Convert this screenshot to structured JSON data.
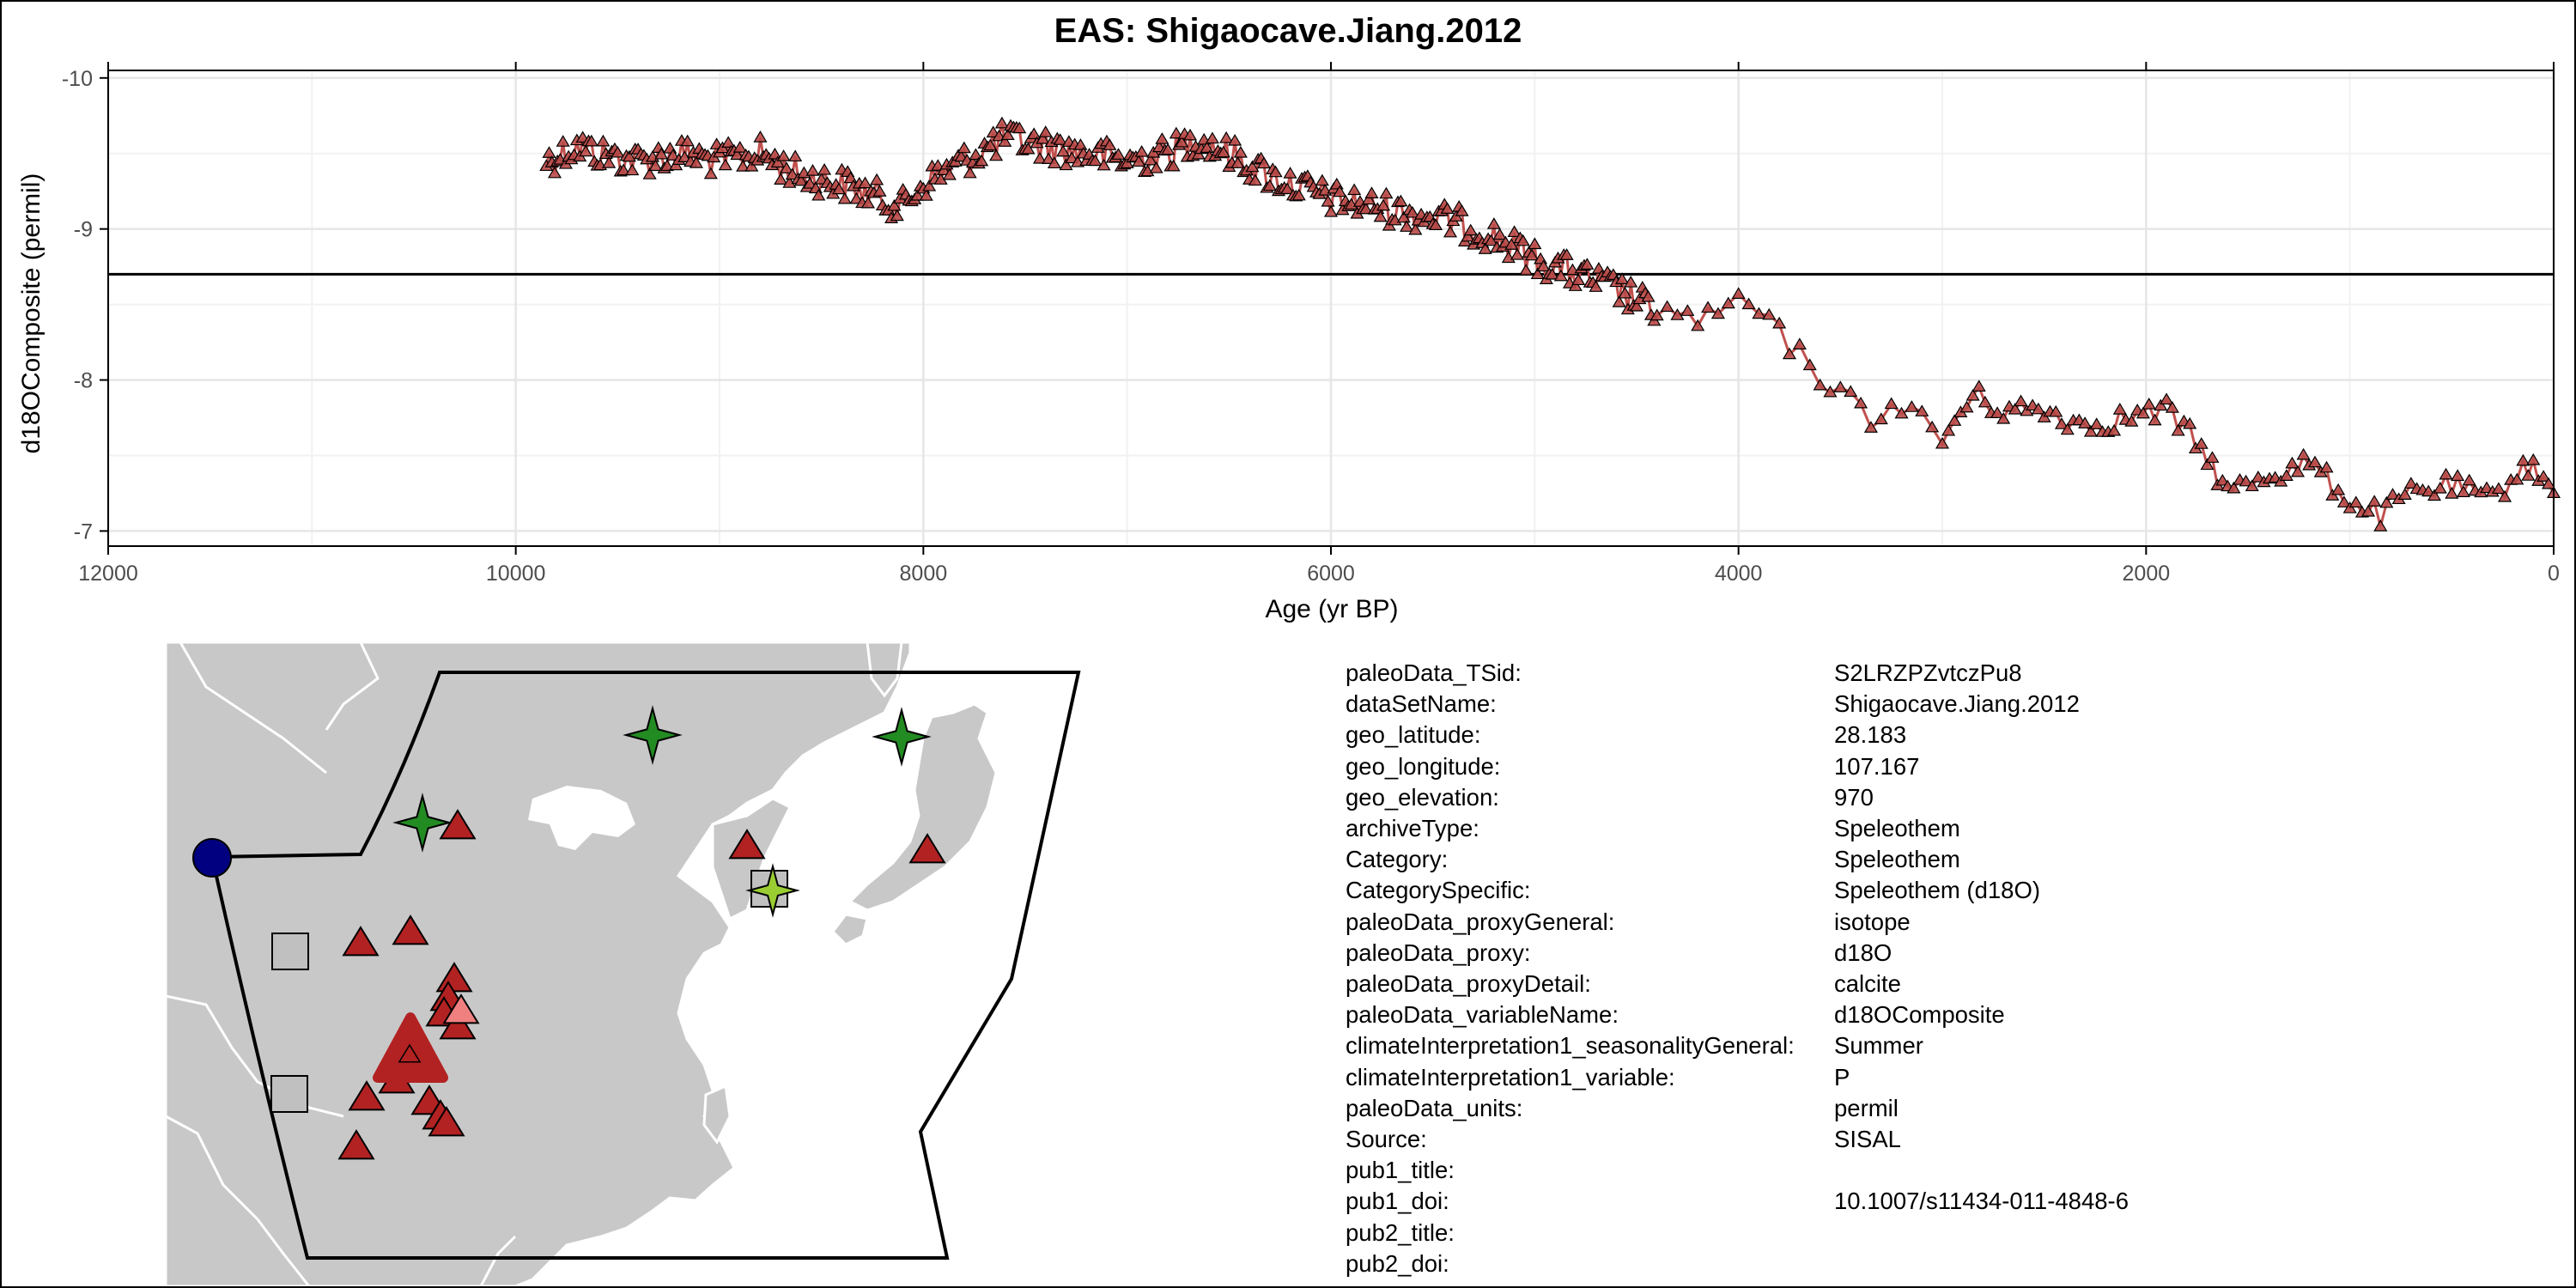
{
  "chart_data": {
    "type": "line",
    "title": "EAS: Shigaocave.Jiang.2012",
    "xlabel": "Age (yr BP)",
    "ylabel": "d18OComposite (permil)",
    "xlim": [
      12000,
      0
    ],
    "ylim": [
      -6.9,
      -10.05
    ],
    "x_reversed": true,
    "y_reversed": true,
    "x_ticks": [
      12000,
      10000,
      8000,
      6000,
      4000,
      2000,
      0
    ],
    "y_ticks": [
      -10,
      -9,
      -8,
      -7
    ],
    "x_tick_labels": [
      "12000",
      "10000",
      "8000",
      "6000",
      "4000",
      "2000",
      "0"
    ],
    "y_tick_labels": [
      "-10",
      "-9",
      "-8",
      "-7"
    ],
    "reference_line_y": -8.7,
    "grid": true,
    "marker": "triangle",
    "series_color": "#c0504d",
    "series": [
      {
        "anchors": [
          [
            9850,
            -9.45
          ],
          [
            9700,
            -9.55
          ],
          [
            9600,
            -9.5
          ],
          [
            9400,
            -9.45
          ],
          [
            9200,
            -9.5
          ],
          [
            9000,
            -9.45
          ],
          [
            8800,
            -9.5
          ],
          [
            8600,
            -9.35
          ],
          [
            8400,
            -9.3
          ],
          [
            8200,
            -9.2
          ],
          [
            8100,
            -9.15
          ],
          [
            8000,
            -9.3
          ],
          [
            7800,
            -9.45
          ],
          [
            7600,
            -9.6
          ],
          [
            7400,
            -9.55
          ],
          [
            7200,
            -9.5
          ],
          [
            7000,
            -9.45
          ],
          [
            6800,
            -9.5
          ],
          [
            6650,
            -9.6
          ],
          [
            6500,
            -9.5
          ],
          [
            6300,
            -9.35
          ],
          [
            6100,
            -9.25
          ],
          [
            6000,
            -9.2
          ],
          [
            5800,
            -9.15
          ],
          [
            5600,
            -9.1
          ],
          [
            5400,
            -9.05
          ],
          [
            5200,
            -8.95
          ],
          [
            5000,
            -8.8
          ],
          [
            4800,
            -8.7
          ],
          [
            4600,
            -8.6
          ],
          [
            4400,
            -8.45
          ],
          [
            4200,
            -8.4
          ],
          [
            4100,
            -8.4
          ],
          [
            4000,
            -8.55
          ],
          [
            3800,
            -8.3
          ],
          [
            3650,
            -8.1
          ],
          [
            3500,
            -7.9
          ],
          [
            3350,
            -7.75
          ],
          [
            3200,
            -7.85
          ],
          [
            3000,
            -7.6
          ],
          [
            2850,
            -7.9
          ],
          [
            2700,
            -7.8
          ],
          [
            2500,
            -7.8
          ],
          [
            2300,
            -7.7
          ],
          [
            2100,
            -7.75
          ],
          [
            1900,
            -7.8
          ],
          [
            1700,
            -7.5
          ],
          [
            1600,
            -7.25
          ],
          [
            1450,
            -7.35
          ],
          [
            1200,
            -7.45
          ],
          [
            1000,
            -7.2
          ],
          [
            850,
            -7.1
          ],
          [
            700,
            -7.25
          ],
          [
            500,
            -7.3
          ],
          [
            300,
            -7.2
          ],
          [
            150,
            -7.45
          ],
          [
            50,
            -7.35
          ],
          [
            0,
            -7.25
          ]
        ]
      }
    ]
  },
  "map": {
    "land_color": "#c8c8c8",
    "site_markers": [
      {
        "shape": "circle",
        "color": "#000080"
      },
      {
        "shape": "star",
        "color": "#228b22"
      },
      {
        "shape": "star",
        "color": "#9acd32"
      },
      {
        "shape": "square",
        "color": "#c0c0c0"
      },
      {
        "shape": "triangle",
        "color": "#b22222"
      },
      {
        "shape": "triangle-down",
        "color": "#f08080"
      },
      {
        "shape": "triangle",
        "color": "#ffd700"
      }
    ]
  },
  "metadata": [
    {
      "key": "paleoData_TSid:",
      "value": "S2LRZPZvtczPu8"
    },
    {
      "key": "dataSetName:",
      "value": "Shigaocave.Jiang.2012"
    },
    {
      "key": "geo_latitude:",
      "value": "28.183"
    },
    {
      "key": "geo_longitude:",
      "value": "107.167"
    },
    {
      "key": "geo_elevation:",
      "value": "970"
    },
    {
      "key": "archiveType:",
      "value": "Speleothem"
    },
    {
      "key": "Category:",
      "value": "Speleothem"
    },
    {
      "key": "CategorySpecific:",
      "value": "Speleothem (d18O)"
    },
    {
      "key": "paleoData_proxyGeneral:",
      "value": "isotope"
    },
    {
      "key": "paleoData_proxy:",
      "value": "d18O"
    },
    {
      "key": "paleoData_proxyDetail:",
      "value": "calcite"
    },
    {
      "key": "paleoData_variableName:",
      "value": "d18OComposite"
    },
    {
      "key": "climateInterpretation1_seasonalityGeneral:",
      "value": "Summer"
    },
    {
      "key": "climateInterpretation1_variable:",
      "value": "P"
    },
    {
      "key": "paleoData_units:",
      "value": "permil"
    },
    {
      "key": "Source:",
      "value": "SISAL"
    },
    {
      "key": "pub1_title:",
      "value": ""
    },
    {
      "key": "pub1_doi:",
      "value": "10.1007/s11434-011-4848-6"
    },
    {
      "key": "pub2_title:",
      "value": ""
    },
    {
      "key": "pub2_doi:",
      "value": ""
    }
  ]
}
